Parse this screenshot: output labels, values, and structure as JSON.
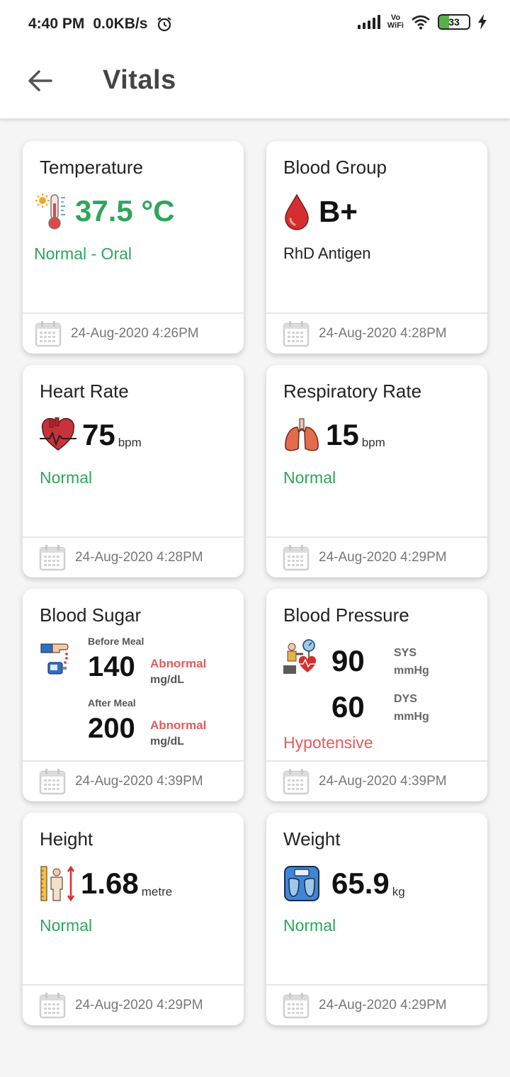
{
  "status_bar": {
    "time": "4:40 PM",
    "network_speed": "0.0KB/s",
    "alarm_icon": "alarm-icon",
    "signal_icon": "signal-bars-icon",
    "vowifi_top": "Vo",
    "vowifi_bottom": "WiFi",
    "wifi_icon": "wifi-icon",
    "battery_level": "33",
    "charging_icon": "lightning-icon"
  },
  "app_bar": {
    "back_icon": "arrow-left-icon",
    "title": "Vitals"
  },
  "colors": {
    "normal": "#2ea55b",
    "abnormal": "#e35b5b",
    "battery_fill": "#5ab04a"
  },
  "cards": {
    "temperature": {
      "title": "Temperature",
      "icon": "thermometer-icon",
      "value": "37.5 °C",
      "status": "Normal - Oral",
      "date": "24-Aug-2020 4:26PM"
    },
    "blood_group": {
      "title": "Blood Group",
      "icon": "blood-drop-icon",
      "value": "B+",
      "status": "RhD Antigen",
      "date": "24-Aug-2020 4:28PM"
    },
    "heart_rate": {
      "title": "Heart Rate",
      "icon": "heart-icon",
      "value": "75",
      "unit": "bpm",
      "status": "Normal",
      "date": "24-Aug-2020 4:28PM"
    },
    "respiratory_rate": {
      "title": "Respiratory Rate",
      "icon": "lungs-icon",
      "value": "15",
      "unit": "bpm",
      "status": "Normal",
      "date": "24-Aug-2020 4:29PM"
    },
    "blood_sugar": {
      "title": "Blood Sugar",
      "icon": "glucometer-icon",
      "before_label": "Before Meal",
      "before_value": "140",
      "before_status": "Abnormal",
      "before_unit": "mg/dL",
      "after_label": "After Meal",
      "after_value": "200",
      "after_status": "Abnormal",
      "after_unit": "mg/dL",
      "date": "24-Aug-2020 4:39PM"
    },
    "blood_pressure": {
      "title": "Blood Pressure",
      "icon": "blood-pressure-icon",
      "sys_value": "90",
      "sys_label": "SYS",
      "sys_unit": "mmHg",
      "dys_value": "60",
      "dys_label": "DYS",
      "dys_unit": "mmHg",
      "status": "Hypotensive",
      "date": "24-Aug-2020 4:39PM"
    },
    "height": {
      "title": "Height",
      "icon": "height-ruler-icon",
      "value": "1.68",
      "unit": "metre",
      "status": "Normal",
      "date": "24-Aug-2020 4:29PM"
    },
    "weight": {
      "title": "Weight",
      "icon": "weighing-scale-icon",
      "value": "65.9",
      "unit": "kg",
      "status": "Normal",
      "date": "24-Aug-2020 4:29PM"
    }
  },
  "footer_icon": "calendar-icon"
}
